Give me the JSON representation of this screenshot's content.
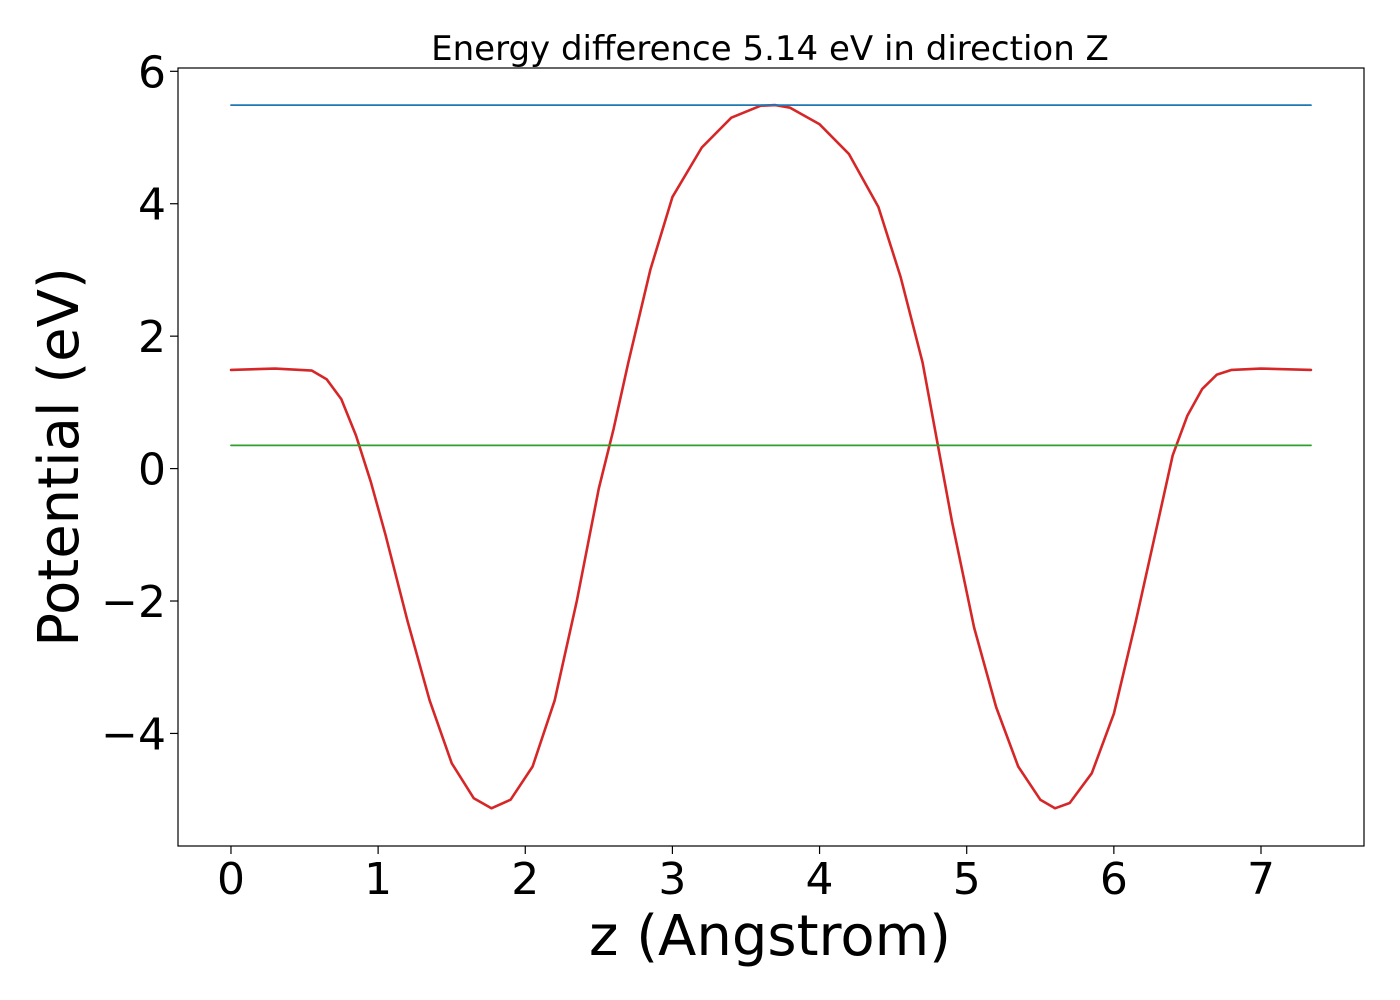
{
  "chart_data": {
    "type": "line",
    "title": "Energy difference 5.14 eV in direction Z",
    "xlabel": "z (Angstrom)",
    "ylabel": "Potential (eV)",
    "xlim": [
      -0.36,
      7.7
    ],
    "ylim": [
      -5.7,
      6.05
    ],
    "xticks": [
      0,
      1,
      2,
      3,
      4,
      5,
      6,
      7
    ],
    "xtick_labels": [
      "0",
      "1",
      "2",
      "3",
      "4",
      "5",
      "6",
      "7"
    ],
    "yticks": [
      -4,
      -2,
      0,
      2,
      4,
      6
    ],
    "ytick_labels": [
      "−4",
      "−2",
      "0",
      "2",
      "4",
      "6"
    ],
    "grid": false,
    "legend": "none",
    "series": [
      {
        "color": "#d62728",
        "x": [
          0.0,
          0.3,
          0.55,
          0.65,
          0.75,
          0.85,
          0.95,
          1.05,
          1.2,
          1.35,
          1.5,
          1.65,
          1.77,
          1.9,
          2.05,
          2.2,
          2.35,
          2.5,
          2.6,
          2.7,
          2.85,
          3.0,
          3.2,
          3.4,
          3.6,
          3.7,
          3.8,
          4.0,
          4.2,
          4.4,
          4.55,
          4.7,
          4.8,
          4.9,
          5.05,
          5.2,
          5.35,
          5.5,
          5.6,
          5.7,
          5.85,
          6.0,
          6.15,
          6.3,
          6.4,
          6.5,
          6.6,
          6.7,
          6.8,
          7.0,
          7.34
        ],
        "y": [
          1.49,
          1.51,
          1.48,
          1.35,
          1.05,
          0.5,
          -0.2,
          -1.0,
          -2.3,
          -3.5,
          -4.45,
          -4.98,
          -5.13,
          -5.0,
          -4.5,
          -3.5,
          -2.0,
          -0.3,
          0.6,
          1.6,
          3.0,
          4.1,
          4.85,
          5.3,
          5.48,
          5.49,
          5.45,
          5.2,
          4.75,
          3.95,
          2.9,
          1.6,
          0.4,
          -0.8,
          -2.4,
          -3.6,
          -4.5,
          -5.0,
          -5.13,
          -5.05,
          -4.6,
          -3.7,
          -2.3,
          -0.8,
          0.2,
          0.8,
          1.2,
          1.42,
          1.49,
          1.51,
          1.49
        ]
      },
      {
        "color": "#1f77b4",
        "x": [
          0.0,
          7.34
        ],
        "y": [
          5.49,
          5.49
        ]
      },
      {
        "color": "#2ca02c",
        "x": [
          0.0,
          7.34
        ],
        "y": [
          0.35,
          0.35
        ]
      }
    ]
  }
}
